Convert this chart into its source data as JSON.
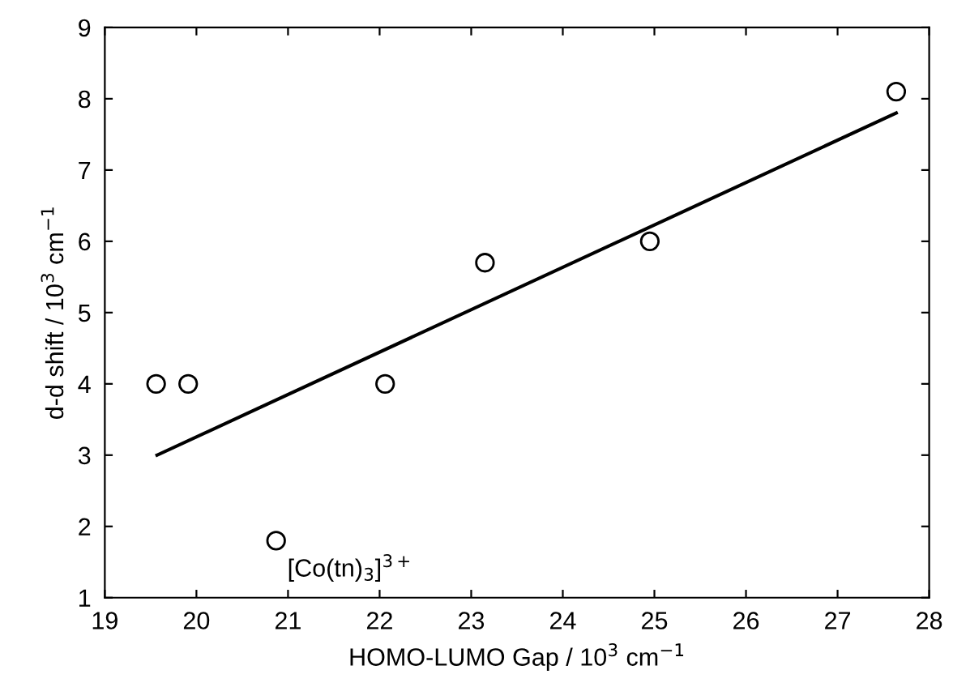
{
  "chart_data": {
    "type": "scatter",
    "xlabel": "HOMO-LUMO Gap / 10$^{3}$ cm$^{−1}$",
    "ylabel": "d-d shift / 10$^{3}$ cm$^{−1}$",
    "series": [
      {
        "color": "#000000",
        "marker": "circle",
        "x": [
          19.56,
          19.91,
          20.87,
          22.06,
          23.15,
          24.95,
          27.64
        ],
        "values": [
          4.0,
          4.0,
          1.8,
          4.0,
          5.7,
          6.0,
          8.1
        ]
      },
      {
        "type": "line",
        "color": "#000000",
        "marker": "none",
        "line_style": "solid",
        "x": [
          19.57,
          27.64
        ],
        "values": [
          3.0,
          7.8
        ]
      }
    ],
    "annotations": [
      {
        "text": "[Co(tn)$_{3}$]$^{3+}$",
        "x": 20.87,
        "y": 1.8
      }
    ],
    "xlim": [
      19,
      28
    ],
    "xticks": [
      19,
      20,
      21,
      22,
      23,
      24,
      25,
      26,
      27,
      28
    ],
    "ylim": [
      1,
      9
    ],
    "yticks": [
      1,
      2,
      3,
      4,
      5,
      6,
      7,
      8,
      9
    ],
    "grid": false,
    "legend": false
  }
}
